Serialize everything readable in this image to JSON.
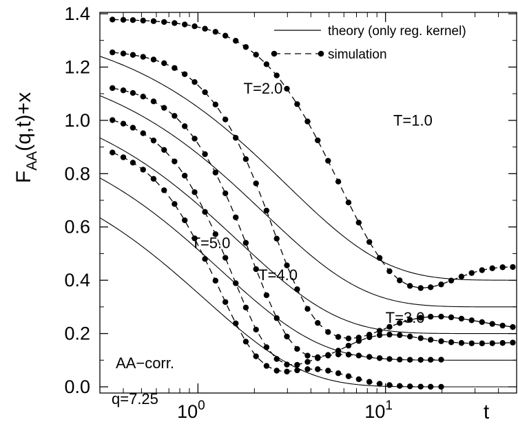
{
  "chart_data": {
    "type": "line",
    "xscale": "log",
    "xlim": [
      0.3,
      50
    ],
    "ylim": [
      -0.02,
      1.4
    ],
    "xlabel": "t",
    "ylabel": {
      "main": "F",
      "sub": "AA",
      "rest": "(q,t)+x"
    },
    "yticks": [
      {
        "value": 0.0,
        "label": "0.0"
      },
      {
        "value": 0.2,
        "label": "0.2"
      },
      {
        "value": 0.4,
        "label": "0.4"
      },
      {
        "value": 0.6,
        "label": "0.6"
      },
      {
        "value": 0.8,
        "label": "0.8"
      },
      {
        "value": 1.0,
        "label": "1.0"
      },
      {
        "value": 1.2,
        "label": "1.2"
      },
      {
        "value": 1.4,
        "label": "1.4"
      }
    ],
    "xticks": [
      {
        "value": 1,
        "base": "10",
        "exp": "0"
      },
      {
        "value": 10,
        "base": "10",
        "exp": "1"
      }
    ],
    "legend": {
      "position": "top-right",
      "entries": [
        {
          "label": "theory (only reg. kernel)",
          "style": "solid"
        },
        {
          "label": "simulation",
          "style": "dashed-dots"
        }
      ]
    },
    "series_labels": [
      {
        "text": "T=1.0",
        "x": 11.0,
        "y": 0.98
      },
      {
        "text": "T=2.0",
        "x": 1.75,
        "y": 1.1
      },
      {
        "text": "T=3.0",
        "x": 10.0,
        "y": 0.24
      },
      {
        "text": "T=4.0",
        "x": 2.1,
        "y": 0.4
      },
      {
        "text": "T=5.0",
        "x": 0.92,
        "y": 0.52
      }
    ],
    "annotations": [
      "AA−corr.",
      "q=7.25"
    ],
    "series": [
      {
        "offset": 0.4,
        "plateau": 0.4,
        "amp": 0.98,
        "sim_tau": 5.2,
        "theory_tau": 2.95,
        "beta": 0.82,
        "sim_t": [
          0.35,
          0.4,
          0.45,
          0.51,
          0.58,
          0.66,
          0.75,
          0.85,
          0.96,
          1.09,
          1.24,
          1.4,
          1.59,
          1.8,
          2.04,
          2.32,
          2.63,
          2.98,
          3.38,
          3.84,
          4.35,
          4.94,
          5.6,
          6.35,
          7.2,
          8.2,
          9.3,
          10.5,
          11.9,
          13.5,
          15.4,
          17.4,
          19.8,
          22.4,
          25.4,
          28.8,
          32.7,
          37.1,
          42.1,
          47.7
        ],
        "sim_y": [
          1.3782,
          1.3773,
          1.3762,
          1.3745,
          1.3723,
          1.3692,
          1.3652,
          1.3598,
          1.353,
          1.3439,
          1.3323,
          1.3177,
          1.2986,
          1.2753,
          1.2465,
          1.2107,
          1.1686,
          1.1187,
          1.0609,
          0.9958,
          0.9249,
          0.8483,
          0.7702,
          0.6917,
          0.6162,
          0.5436,
          0.4837,
          0.4338,
          0.3994,
          0.3788,
          0.3707,
          0.3737,
          0.3843,
          0.3988,
          0.4138,
          0.4271,
          0.4378,
          0.445,
          0.4488,
          0.4497
        ]
      },
      {
        "offset": 0.3,
        "plateau": 0.3,
        "amp": 0.96,
        "sim_tau": 2.4,
        "theory_tau": 2.25,
        "beta": 0.82,
        "sim_t": [
          0.35,
          0.4,
          0.45,
          0.51,
          0.58,
          0.66,
          0.75,
          0.85,
          0.96,
          1.09,
          1.24,
          1.4,
          1.59,
          1.8,
          2.04,
          2.32,
          2.63,
          2.98,
          3.38,
          3.84,
          4.35,
          4.94,
          5.6,
          6.35,
          7.2,
          8.2,
          9.3,
          10.5,
          11.9,
          13.5,
          15.4,
          17.4,
          19.8,
          22.4,
          25.4,
          28.8,
          32.7,
          37.1,
          42.1,
          47.7
        ],
        "sim_y": [
          1.2551,
          1.2508,
          1.2457,
          1.2384,
          1.2283,
          1.2145,
          1.1965,
          1.1733,
          1.1438,
          1.1057,
          1.0594,
          1.0034,
          0.9344,
          0.8545,
          0.7635,
          0.6614,
          0.5561,
          0.4558,
          0.3663,
          0.2926,
          0.2398,
          0.2057,
          0.1873,
          0.1817,
          0.1848,
          0.1959,
          0.2102,
          0.2251,
          0.2395,
          0.2513,
          0.2594,
          0.2632,
          0.2636,
          0.2609,
          0.2559,
          0.2498,
          0.243,
          0.2361,
          0.2298,
          0.2244
        ]
      },
      {
        "offset": 0.2,
        "plateau": 0.2,
        "amp": 0.94,
        "sim_tau": 1.7,
        "theory_tau": 1.65,
        "beta": 0.82,
        "sim_t": [
          0.35,
          0.4,
          0.45,
          0.51,
          0.58,
          0.66,
          0.75,
          0.85,
          0.96,
          1.09,
          1.24,
          1.4,
          1.59,
          1.8,
          2.04,
          2.32,
          2.63,
          2.98,
          3.38,
          3.84,
          4.35,
          4.94,
          5.6,
          6.35,
          7.2,
          8.2,
          9.3,
          10.5,
          11.9,
          13.5,
          15.4,
          17.4,
          19.8,
          22.4,
          25.4,
          28.8,
          32.7,
          37.1,
          42.1,
          47.7
        ],
        "sim_y": [
          1.1211,
          1.1127,
          1.1028,
          1.0893,
          1.0711,
          1.047,
          1.0168,
          0.978,
          0.9314,
          0.8731,
          0.8041,
          0.7263,
          0.636,
          0.5405,
          0.4417,
          0.3438,
          0.2577,
          0.1887,
          0.1422,
          0.1171,
          0.1111,
          0.1197,
          0.1357,
          0.1546,
          0.172,
          0.1861,
          0.1939,
          0.196,
          0.1939,
          0.1889,
          0.1826,
          0.1764,
          0.1712,
          0.1673,
          0.1647,
          0.1633,
          0.1631,
          0.1636,
          0.1647,
          0.166
        ]
      },
      {
        "offset": 0.1,
        "plateau": 0.1,
        "amp": 0.92,
        "sim_tau": 1.35,
        "theory_tau": 1.32,
        "beta": 0.82,
        "sim_t": [
          0.35,
          0.4,
          0.45,
          0.51,
          0.58,
          0.66,
          0.75,
          0.85,
          0.96,
          1.09,
          1.24,
          1.4,
          1.59,
          1.8,
          2.04,
          2.32,
          2.63,
          2.98,
          3.38,
          3.84,
          4.35,
          4.94,
          5.6,
          6.35,
          7.2,
          8.2,
          9.3,
          10.5,
          11.9,
          13.5,
          15.4,
          17.4,
          19.8
        ],
        "sim_y": [
          1.0009,
          0.9876,
          0.9723,
          0.9517,
          0.9244,
          0.8891,
          0.8459,
          0.7925,
          0.7305,
          0.6564,
          0.5729,
          0.4841,
          0.3888,
          0.2975,
          0.2149,
          0.1486,
          0.1046,
          0.0836,
          0.0826,
          0.0937,
          0.1073,
          0.1175,
          0.1216,
          0.1209,
          0.1173,
          0.1124,
          0.1078,
          0.1044,
          0.1024,
          0.1015,
          0.1013,
          0.1015,
          0.1019
        ]
      },
      {
        "offset": 0.0,
        "plateau": 0.0,
        "amp": 0.9,
        "sim_tau": 1.1,
        "theory_tau": 1.08,
        "beta": 0.82,
        "sim_t": [
          0.35,
          0.4,
          0.45,
          0.51,
          0.58,
          0.66,
          0.75,
          0.85,
          0.96,
          1.09,
          1.24,
          1.4,
          1.59,
          1.8,
          2.04,
          2.32,
          2.63,
          2.98,
          3.38,
          3.84,
          4.35,
          4.94,
          5.6,
          6.35,
          7.2,
          8.2,
          9.3,
          10.5,
          11.9,
          13.5,
          15.4,
          17.4,
          19.8
        ],
        "sim_y": [
          0.8793,
          0.8614,
          0.8412,
          0.815,
          0.7806,
          0.7377,
          0.6862,
          0.6249,
          0.5572,
          0.4799,
          0.3984,
          0.3183,
          0.2382,
          0.1697,
          0.1145,
          0.0785,
          0.0607,
          0.0573,
          0.0619,
          0.0664,
          0.0662,
          0.0607,
          0.0511,
          0.0397,
          0.0286,
          0.0187,
          0.0114,
          0.0065,
          0.0034,
          0.0017,
          0.0008,
          0.0004,
          0.0002
        ]
      }
    ]
  }
}
